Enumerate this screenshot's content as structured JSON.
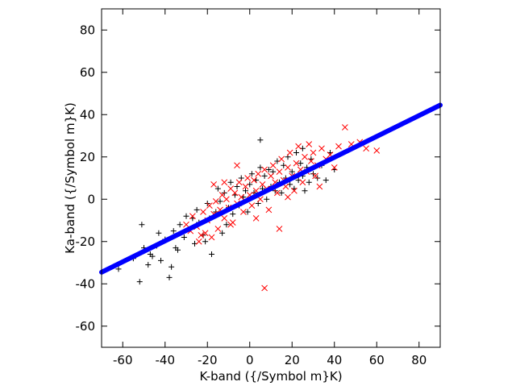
{
  "chart_data": {
    "type": "scatter",
    "title": "",
    "xlabel": "K-band ({/Symbol m}K)",
    "ylabel": "Ka-band ({/Symbol m}K)",
    "xlim": [
      -70,
      90
    ],
    "ylim": [
      -70,
      90
    ],
    "xticks": [
      -60,
      -40,
      -20,
      0,
      20,
      40,
      60,
      80
    ],
    "yticks": [
      -60,
      -40,
      -20,
      0,
      20,
      40,
      60,
      80
    ],
    "xtick_labels": [
      "-60",
      "-40",
      "-20",
      "0",
      "20",
      "40",
      "60",
      "80"
    ],
    "ytick_labels": [
      "-60",
      "-40",
      "-20",
      "0",
      "20",
      "40",
      "60",
      "80"
    ],
    "grid": false,
    "legend": "none",
    "series": [
      {
        "marker": "plus",
        "color": "#000000",
        "x": [
          -62,
          -55,
          -52,
          -50,
          -48,
          -46,
          -44,
          -42,
          -40,
          -38,
          -36,
          -35,
          -33,
          -31,
          -30,
          -28,
          -26,
          -25,
          -24,
          -22,
          -20,
          -19,
          -18,
          -16,
          -15,
          -14,
          -12,
          -11,
          -10,
          -9,
          -8,
          -7,
          -6,
          -5,
          -4,
          -3,
          -2,
          -1,
          0,
          1,
          2,
          3,
          4,
          5,
          6,
          7,
          8,
          9,
          10,
          11,
          12,
          13,
          14,
          15,
          16,
          17,
          18,
          19,
          20,
          21,
          22,
          23,
          24,
          25,
          26,
          27,
          28,
          29,
          30,
          32,
          34,
          36,
          38,
          40,
          -51,
          -47,
          -43,
          -37,
          -34,
          -27,
          -21,
          -13,
          5,
          25
        ],
        "y": [
          -33,
          -28,
          -39,
          -23,
          -31,
          -27,
          -22,
          -29,
          -19,
          -37,
          -15,
          -23,
          -12,
          -18,
          -8,
          -14,
          -21,
          -5,
          -11,
          -17,
          -2,
          -9,
          -26,
          -6,
          5,
          -1,
          3,
          -12,
          -4,
          8,
          -7,
          2,
          6,
          -3,
          10,
          1,
          4,
          -6,
          7,
          12,
          3,
          9,
          -2,
          15,
          5,
          11,
          0,
          14,
          6,
          13,
          4,
          18,
          8,
          3,
          16,
          10,
          20,
          7,
          13,
          5,
          22,
          9,
          17,
          11,
          4,
          15,
          8,
          19,
          12,
          10,
          16,
          9,
          22,
          14,
          -12,
          -26,
          -16,
          -32,
          -24,
          -9,
          -20,
          -16,
          28,
          24
        ]
      },
      {
        "marker": "cross",
        "color": "#ff0000",
        "x": [
          -30,
          -28,
          -27,
          -25,
          -24,
          -22,
          -21,
          -20,
          -19,
          -18,
          -17,
          -16,
          -15,
          -14,
          -13,
          -12,
          -11,
          -10,
          -9,
          -8,
          -7,
          -6,
          -5,
          -4,
          -3,
          -2,
          -1,
          0,
          1,
          2,
          3,
          4,
          5,
          6,
          7,
          8,
          9,
          10,
          11,
          12,
          13,
          14,
          15,
          16,
          17,
          18,
          19,
          20,
          21,
          22,
          23,
          24,
          25,
          26,
          27,
          28,
          29,
          30,
          31,
          32,
          34,
          36,
          38,
          40,
          42,
          45,
          48,
          52,
          55,
          60,
          7,
          -23,
          -17,
          -9,
          3,
          14,
          33,
          18,
          -6,
          -12
        ],
        "y": [
          -12,
          -15,
          -8,
          -13,
          -20,
          -6,
          -16,
          -10,
          -3,
          -18,
          -7,
          -1,
          -14,
          -5,
          2,
          -9,
          0,
          -4,
          5,
          -11,
          3,
          -2,
          8,
          1,
          -6,
          6,
          10,
          2,
          -3,
          9,
          4,
          12,
          0,
          7,
          14,
          5,
          -5,
          11,
          16,
          8,
          3,
          13,
          19,
          9,
          6,
          15,
          22,
          11,
          4,
          17,
          25,
          14,
          8,
          20,
          13,
          26,
          18,
          22,
          11,
          16,
          24,
          19,
          21,
          15,
          25,
          34,
          26,
          27,
          24,
          23,
          -42,
          -17,
          7,
          -12,
          -9,
          -14,
          6,
          1,
          16,
          8
        ]
      },
      {
        "marker": "line",
        "color": "#0000ff",
        "x": [
          -70,
          90
        ],
        "y": [
          -34.5,
          44.5
        ]
      }
    ]
  }
}
